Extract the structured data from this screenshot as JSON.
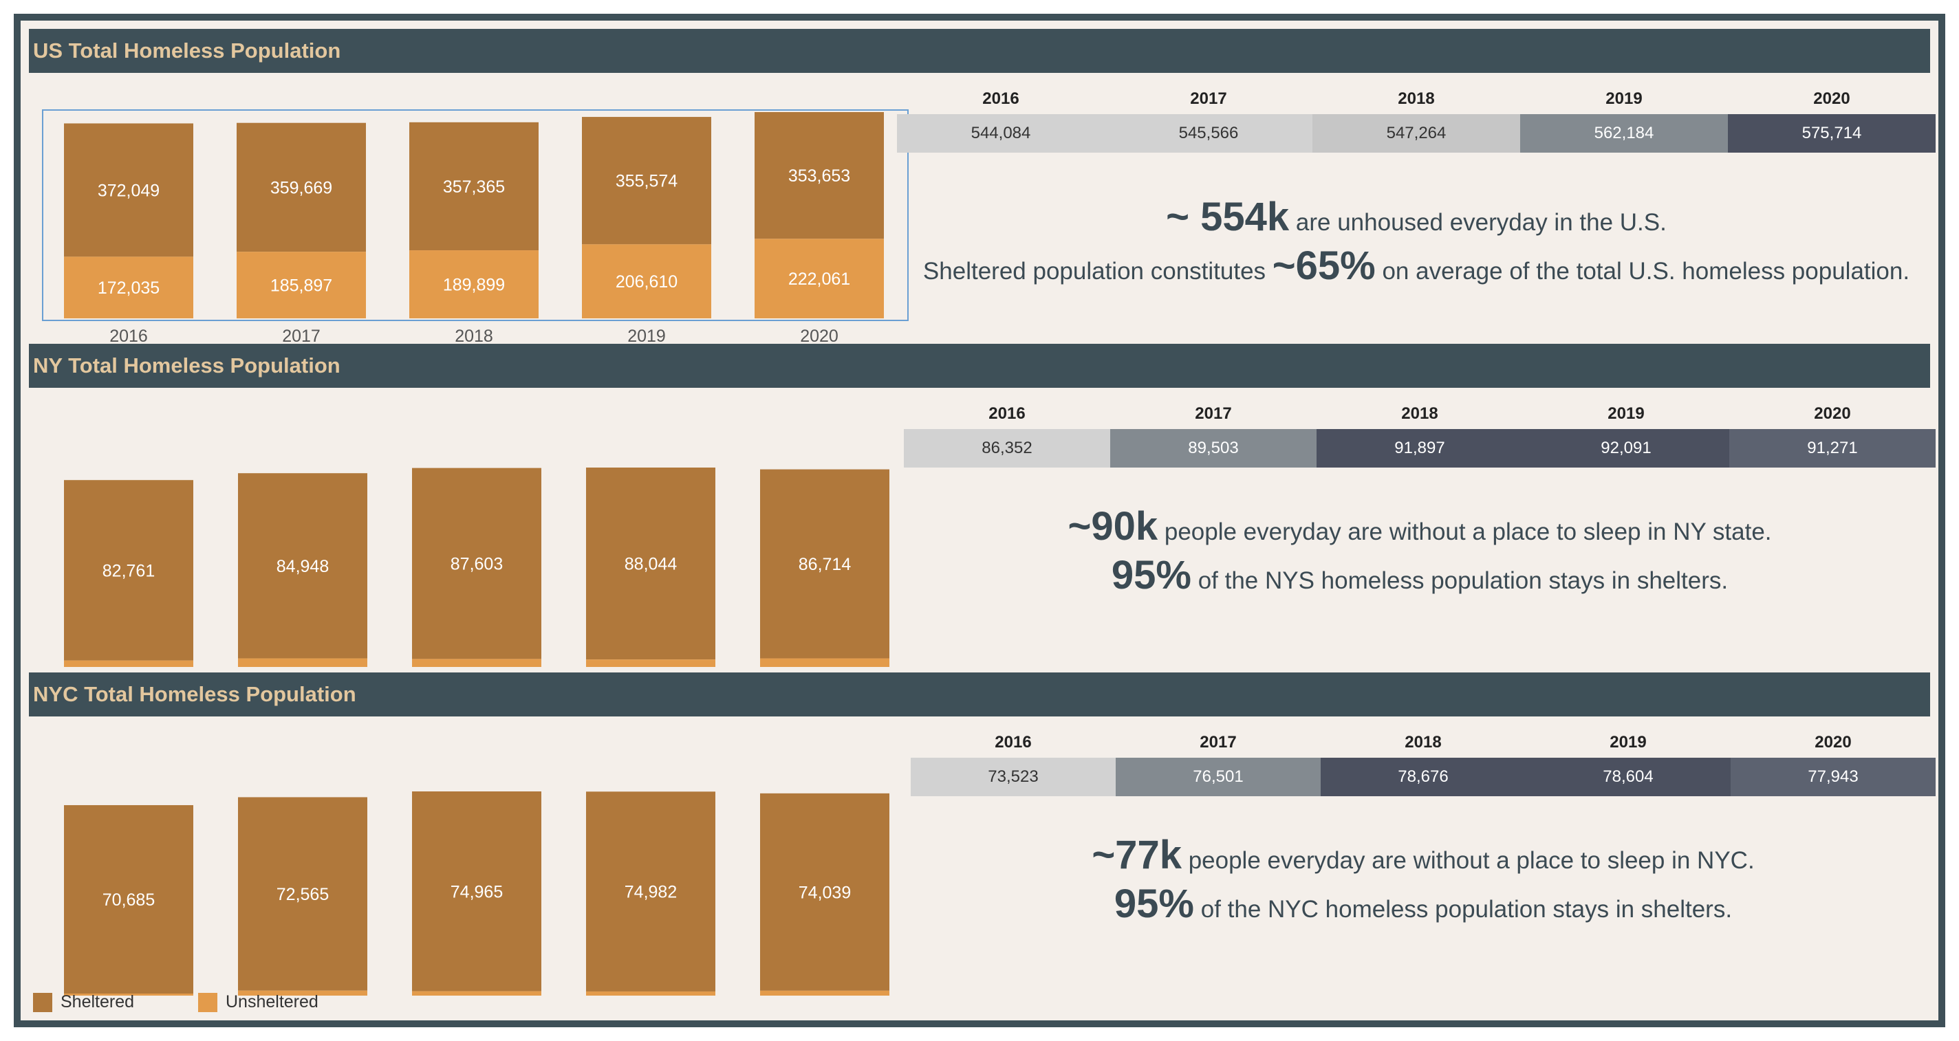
{
  "colors": {
    "sheltered": "#b0783b",
    "unsheltered": "#e39b4b",
    "header_bg": "#3e5058",
    "header_text": "#e3c79e",
    "panel_bg": "#f4efea"
  },
  "legend": [
    {
      "label": "Sheltered",
      "color": "#b0783b"
    },
    {
      "label": "Unsheltered",
      "color": "#e39b4b"
    }
  ],
  "sections": [
    {
      "title": "US Total Homeless Population",
      "table": {
        "years": [
          "2016",
          "2017",
          "2018",
          "2019",
          "2020"
        ],
        "values": [
          "544,084",
          "545,566",
          "547,264",
          "562,184",
          "575,714"
        ],
        "cell_colors": [
          "#d2d2d2",
          "#d2d2d2",
          "#c6c6c6",
          "#838a90",
          "#4b505f"
        ],
        "text_colors": [
          "#333333",
          "#333333",
          "#333333",
          "#ffffff",
          "#ffffff"
        ]
      },
      "summary": [
        [
          {
            "text": "~ 554k",
            "big": true
          },
          {
            "text": " are unhoused everyday in the U.S.",
            "big": false
          }
        ],
        [
          {
            "text": "Sheltered population constitutes ",
            "big": false
          },
          {
            "text": "~65%",
            "big": true
          },
          {
            "text": " on average of the total U.S. homeless population.",
            "big": false
          }
        ]
      ]
    },
    {
      "title": "NY Total Homeless Population",
      "table": {
        "years": [
          "2016",
          "2017",
          "2018",
          "2019",
          "2020"
        ],
        "values": [
          "86,352",
          "89,503",
          "91,897",
          "92,091",
          "91,271"
        ],
        "cell_colors": [
          "#d2d2d2",
          "#838a90",
          "#4b505f",
          "#4b505f",
          "#5c6270"
        ],
        "text_colors": [
          "#333333",
          "#ffffff",
          "#ffffff",
          "#ffffff",
          "#ffffff"
        ]
      },
      "summary": [
        [
          {
            "text": "~90k",
            "big": true
          },
          {
            "text": " people everyday are without a place to sleep in NY state.",
            "big": false
          }
        ],
        [
          {
            "text": "95%",
            "big": true
          },
          {
            "text": " of the NYS homeless population stays in shelters.",
            "big": false
          }
        ]
      ]
    },
    {
      "title": "NYC Total Homeless Population",
      "table": {
        "years": [
          "2016",
          "2017",
          "2018",
          "2019",
          "2020"
        ],
        "values": [
          "73,523",
          "76,501",
          "78,676",
          "78,604",
          "77,943"
        ],
        "cell_colors": [
          "#d2d2d2",
          "#838a90",
          "#4b505f",
          "#4b505f",
          "#5c6270"
        ],
        "text_colors": [
          "#333333",
          "#ffffff",
          "#ffffff",
          "#ffffff",
          "#ffffff"
        ]
      },
      "summary": [
        [
          {
            "text": "~77k",
            "big": true
          },
          {
            "text": " people everyday are without a place to sleep in NYC.",
            "big": false
          }
        ],
        [
          {
            "text": "95%",
            "big": true
          },
          {
            "text": " of the NYC homeless population stays in shelters.",
            "big": false
          }
        ]
      ]
    }
  ],
  "chart_data": [
    {
      "type": "bar",
      "stacked": true,
      "title": "US Total Homeless Population",
      "categories": [
        "2016",
        "2017",
        "2018",
        "2019",
        "2020"
      ],
      "series": [
        {
          "name": "Sheltered",
          "values": [
            372049,
            359669,
            357365,
            355574,
            353653
          ],
          "labels": [
            "372,049",
            "359,669",
            "357,365",
            "355,574",
            "353,653"
          ]
        },
        {
          "name": "Unsheltered",
          "values": [
            172035,
            185897,
            189899,
            206610,
            222061
          ],
          "labels": [
            "172,035",
            "185,897",
            "189,899",
            "206,610",
            "222,061"
          ]
        }
      ],
      "ylim": [
        0,
        575714
      ]
    },
    {
      "type": "bar",
      "stacked": true,
      "title": "NY Total Homeless Population",
      "categories": [
        "2016",
        "2017",
        "2018",
        "2019",
        "2020"
      ],
      "series": [
        {
          "name": "Sheltered",
          "values": [
            82761,
            84948,
            87603,
            88044,
            86714
          ],
          "labels": [
            "82,761",
            "84,948",
            "87,603",
            "88,044",
            "86,714"
          ]
        },
        {
          "name": "Unsheltered",
          "values": [
            3591,
            4555,
            4294,
            4047,
            4557
          ],
          "labels": []
        }
      ],
      "ylim": [
        0,
        92091
      ]
    },
    {
      "type": "bar",
      "stacked": true,
      "title": "NYC Total Homeless Population",
      "categories": [
        "2016",
        "2017",
        "2018",
        "2019",
        "2020"
      ],
      "series": [
        {
          "name": "Sheltered",
          "values": [
            70685,
            72565,
            74965,
            74982,
            74039
          ],
          "labels": [
            "70,685",
            "72,565",
            "74,965",
            "74,982",
            "74,039"
          ]
        },
        {
          "name": "Unsheltered",
          "values": [
            2838,
            3936,
            3711,
            3622,
            3904
          ],
          "labels": []
        }
      ],
      "ylim": [
        0,
        78676
      ]
    }
  ]
}
